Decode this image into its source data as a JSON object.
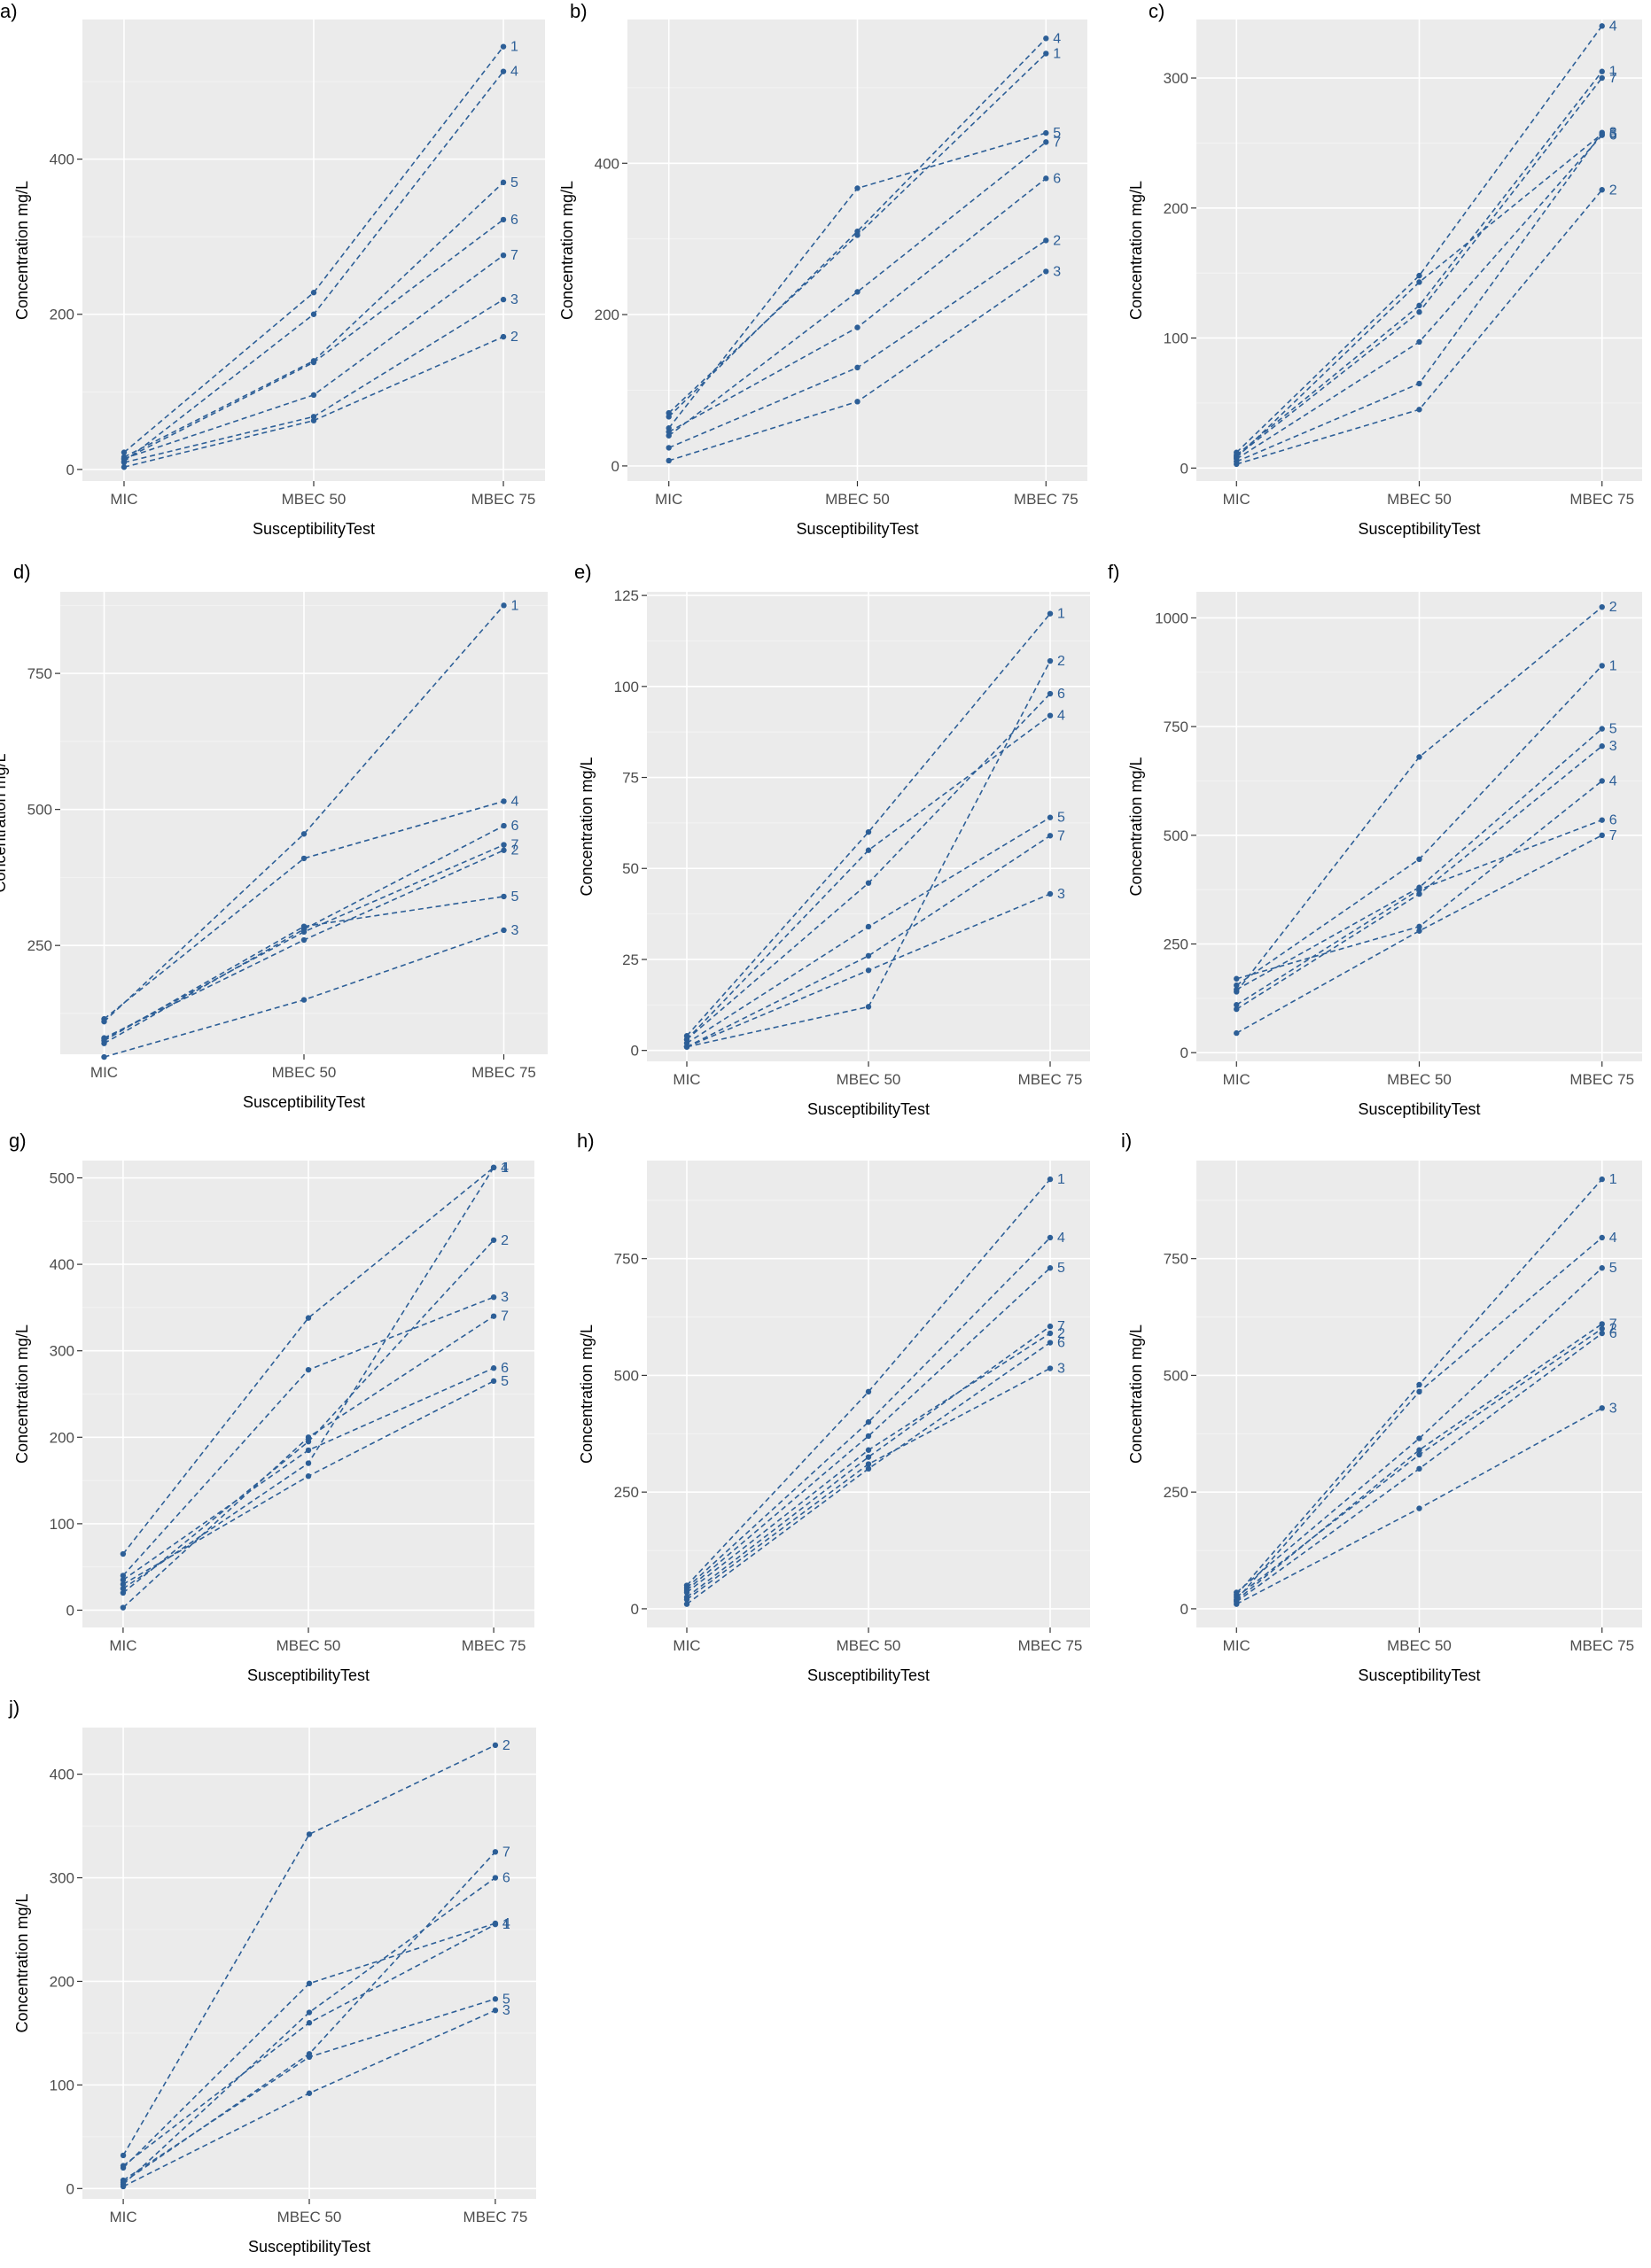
{
  "figure": {
    "accent_color": "#2d5f97",
    "panel_background": "#ebebeb",
    "grid_color": "#ffffff"
  },
  "chart_data": [
    {
      "panel": "a)",
      "type": "line",
      "categories": [
        "MIC",
        "MBEC 50",
        "MBEC 75"
      ],
      "xlabel": "SusceptibilityTest",
      "ylabel": "Concentration mg/L",
      "ylim": [
        -15,
        580
      ],
      "yticks": [
        0,
        200,
        400
      ],
      "grid": true,
      "series": [
        {
          "name": "1",
          "values": [
            22,
            228,
            545
          ]
        },
        {
          "name": "2",
          "values": [
            3,
            63,
            171
          ]
        },
        {
          "name": "3",
          "values": [
            9,
            68,
            219
          ]
        },
        {
          "name": "4",
          "values": [
            10,
            200,
            513
          ]
        },
        {
          "name": "5",
          "values": [
            16,
            140,
            370
          ]
        },
        {
          "name": "6",
          "values": [
            13,
            138,
            322
          ]
        },
        {
          "name": "7",
          "values": [
            14,
            96,
            276
          ]
        }
      ]
    },
    {
      "panel": "b)",
      "type": "line",
      "categories": [
        "MIC",
        "MBEC 50",
        "MBEC 75"
      ],
      "xlabel": "SusceptibilityTest",
      "ylabel": "Concentration mg/L",
      "ylim": [
        -20,
        590
      ],
      "yticks": [
        0,
        200,
        400
      ],
      "grid": true,
      "series": [
        {
          "name": "1",
          "values": [
            70,
            305,
            545
          ]
        },
        {
          "name": "2",
          "values": [
            24,
            130,
            298
          ]
        },
        {
          "name": "3",
          "values": [
            7,
            85,
            257
          ]
        },
        {
          "name": "4",
          "values": [
            65,
            310,
            565
          ]
        },
        {
          "name": "5",
          "values": [
            50,
            367,
            440
          ]
        },
        {
          "name": "6",
          "values": [
            45,
            183,
            380
          ]
        },
        {
          "name": "7",
          "values": [
            40,
            230,
            428
          ]
        }
      ]
    },
    {
      "panel": "c)",
      "type": "line",
      "categories": [
        "MIC",
        "MBEC 50",
        "MBEC 75"
      ],
      "xlabel": "SusceptibilityTest",
      "ylabel": "Concentration mg/L",
      "ylim": [
        -10,
        345
      ],
      "yticks": [
        0,
        100,
        200,
        300
      ],
      "grid": true,
      "series": [
        {
          "name": "1",
          "values": [
            10,
            125,
            305
          ]
        },
        {
          "name": "2",
          "values": [
            3,
            45,
            214
          ]
        },
        {
          "name": "3",
          "values": [
            5,
            65,
            258
          ]
        },
        {
          "name": "4",
          "values": [
            12,
            148,
            340
          ]
        },
        {
          "name": "5",
          "values": [
            8,
            143,
            257
          ]
        },
        {
          "name": "6",
          "values": [
            7,
            97,
            256
          ]
        },
        {
          "name": "7",
          "values": [
            9,
            120,
            300
          ]
        }
      ]
    },
    {
      "panel": "d)",
      "type": "line",
      "categories": [
        "MIC",
        "MBEC 50",
        "MBEC 75"
      ],
      "xlabel": "SusceptibilityTest",
      "ylabel": "Concentration mg/L",
      "ylim": [
        50,
        900
      ],
      "yticks": [
        250,
        500,
        750
      ],
      "grid": true,
      "series": [
        {
          "name": "1",
          "values": [
            110,
            455,
            875
          ]
        },
        {
          "name": "2",
          "values": [
            80,
            260,
            425
          ]
        },
        {
          "name": "3",
          "values": [
            45,
            150,
            278
          ]
        },
        {
          "name": "4",
          "values": [
            115,
            410,
            515
          ]
        },
        {
          "name": "5",
          "values": [
            75,
            285,
            340
          ]
        },
        {
          "name": "6",
          "values": [
            70,
            280,
            470
          ]
        },
        {
          "name": "7",
          "values": [
            78,
            275,
            435
          ]
        }
      ]
    },
    {
      "panel": "e)",
      "type": "line",
      "categories": [
        "MIC",
        "MBEC 50",
        "MBEC 75"
      ],
      "xlabel": "SusceptibilityTest",
      "ylabel": "Concentration mg/L",
      "ylim": [
        -3,
        126
      ],
      "yticks": [
        0,
        25,
        50,
        75,
        100,
        125
      ],
      "grid": true,
      "series": [
        {
          "name": "1",
          "values": [
            4,
            60,
            120
          ]
        },
        {
          "name": "2",
          "values": [
            1,
            12,
            107
          ]
        },
        {
          "name": "3",
          "values": [
            1,
            22,
            43
          ]
        },
        {
          "name": "4",
          "values": [
            3,
            55,
            92
          ]
        },
        {
          "name": "5",
          "values": [
            2,
            34,
            64
          ]
        },
        {
          "name": "6",
          "values": [
            3,
            46,
            98
          ]
        },
        {
          "name": "7",
          "values": [
            1,
            26,
            59
          ]
        }
      ]
    },
    {
      "panel": "f)",
      "type": "line",
      "categories": [
        "MIC",
        "MBEC 50",
        "MBEC 75"
      ],
      "xlabel": "SusceptibilityTest",
      "ylabel": "Concentration mg/L",
      "ylim": [
        -20,
        1060
      ],
      "yticks": [
        0,
        250,
        500,
        750,
        1000
      ],
      "grid": true,
      "series": [
        {
          "name": "1",
          "values": [
            155,
            445,
            890
          ]
        },
        {
          "name": "2",
          "values": [
            140,
            680,
            1025
          ]
        },
        {
          "name": "3",
          "values": [
            100,
            365,
            705
          ]
        },
        {
          "name": "4",
          "values": [
            170,
            290,
            625
          ]
        },
        {
          "name": "5",
          "values": [
            145,
            380,
            745
          ]
        },
        {
          "name": "6",
          "values": [
            110,
            375,
            535
          ]
        },
        {
          "name": "7",
          "values": [
            45,
            280,
            500
          ]
        }
      ]
    },
    {
      "panel": "g)",
      "type": "line",
      "categories": [
        "MIC",
        "MBEC 50",
        "MBEC 75"
      ],
      "xlabel": "SusceptibilityTest",
      "ylabel": "Concentration mg/L",
      "ylim": [
        -20,
        520
      ],
      "yticks": [
        0,
        100,
        200,
        300,
        400,
        500
      ],
      "grid": true,
      "series": [
        {
          "name": "1",
          "values": [
            65,
            338,
            512
          ]
        },
        {
          "name": "2",
          "values": [
            20,
            195,
            428
          ]
        },
        {
          "name": "3",
          "values": [
            40,
            278,
            362
          ]
        },
        {
          "name": "4",
          "values": [
            25,
            170,
            512
          ]
        },
        {
          "name": "5",
          "values": [
            30,
            155,
            265
          ]
        },
        {
          "name": "6",
          "values": [
            35,
            185,
            280
          ]
        },
        {
          "name": "7",
          "values": [
            3,
            200,
            340
          ]
        }
      ]
    },
    {
      "panel": "h)",
      "type": "line",
      "categories": [
        "MIC",
        "MBEC 50",
        "MBEC 75"
      ],
      "xlabel": "SusceptibilityTest",
      "ylabel": "Concentration mg/L",
      "ylim": [
        -40,
        960
      ],
      "yticks": [
        0,
        250,
        500,
        750
      ],
      "grid": true,
      "series": [
        {
          "name": "1",
          "values": [
            50,
            465,
            920
          ]
        },
        {
          "name": "2",
          "values": [
            35,
            340,
            590
          ]
        },
        {
          "name": "3",
          "values": [
            20,
            310,
            515
          ]
        },
        {
          "name": "4",
          "values": [
            45,
            400,
            795
          ]
        },
        {
          "name": "5",
          "values": [
            40,
            370,
            730
          ]
        },
        {
          "name": "6",
          "values": [
            10,
            300,
            570
          ]
        },
        {
          "name": "7",
          "values": [
            25,
            325,
            605
          ]
        }
      ]
    },
    {
      "panel": "i)",
      "type": "line",
      "categories": [
        "MIC",
        "MBEC 50",
        "MBEC 75"
      ],
      "xlabel": "SusceptibilityTest",
      "ylabel": "Concentration mg/L",
      "ylim": [
        -40,
        960
      ],
      "yticks": [
        0,
        250,
        500,
        750
      ],
      "grid": true,
      "series": [
        {
          "name": "1",
          "values": [
            30,
            480,
            920
          ]
        },
        {
          "name": "2",
          "values": [
            25,
            330,
            600
          ]
        },
        {
          "name": "3",
          "values": [
            10,
            215,
            430
          ]
        },
        {
          "name": "4",
          "values": [
            20,
            465,
            795
          ]
        },
        {
          "name": "5",
          "values": [
            35,
            365,
            730
          ]
        },
        {
          "name": "6",
          "values": [
            15,
            300,
            590
          ]
        },
        {
          "name": "7",
          "values": [
            18,
            340,
            610
          ]
        }
      ]
    },
    {
      "panel": "j)",
      "type": "line",
      "categories": [
        "MIC",
        "MBEC 50",
        "MBEC 75"
      ],
      "xlabel": "SusceptibilityTest",
      "ylabel": "Concentration mg/L",
      "ylim": [
        -10,
        445
      ],
      "yticks": [
        0,
        100,
        200,
        300,
        400
      ],
      "grid": true,
      "series": [
        {
          "name": "1",
          "values": [
            22,
            160,
            255
          ]
        },
        {
          "name": "2",
          "values": [
            32,
            342,
            428
          ]
        },
        {
          "name": "3",
          "values": [
            2,
            92,
            172
          ]
        },
        {
          "name": "4",
          "values": [
            20,
            198,
            256
          ]
        },
        {
          "name": "5",
          "values": [
            8,
            127,
            183
          ]
        },
        {
          "name": "6",
          "values": [
            4,
            170,
            300
          ]
        },
        {
          "name": "7",
          "values": [
            6,
            130,
            325
          ]
        }
      ]
    }
  ]
}
